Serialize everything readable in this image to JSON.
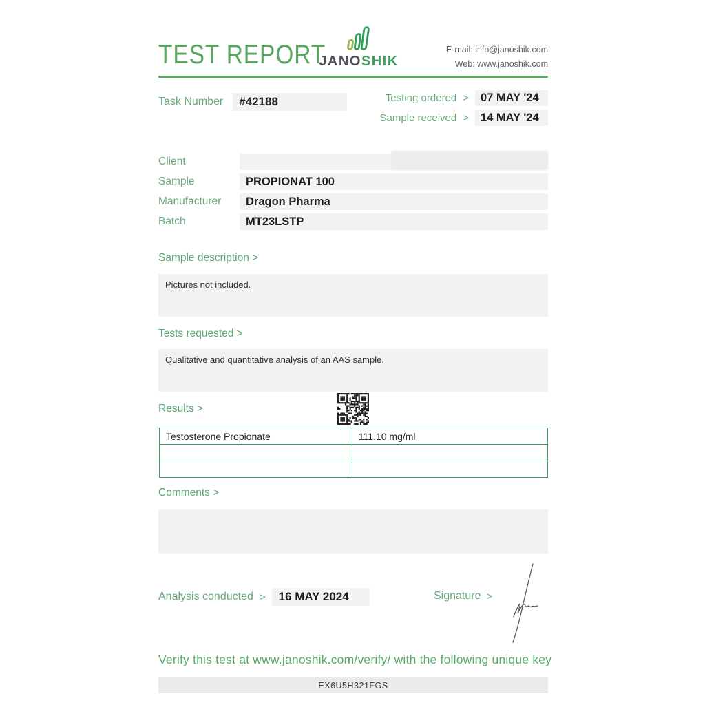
{
  "colors": {
    "accent_green": "#58a75f",
    "label_green": "#6aa87c",
    "table_border": "#3d9c60",
    "dark_text": "#2d2d2d",
    "box_gray": "#f2f2f1"
  },
  "header": {
    "title": "TEST REPORT",
    "logo_jano": "JANO",
    "logo_shik": "SHIK",
    "email_line": "E-mail: info@janoshik.com",
    "web_line": "Web: www.janoshik.com"
  },
  "task": {
    "label": "Task Number",
    "value": "#42188",
    "dates": [
      {
        "label": "Testing ordered",
        "arrow": ">",
        "value": "07 MAY '24"
      },
      {
        "label": "Sample received",
        "arrow": ">",
        "value": "14 MAY '24"
      }
    ]
  },
  "info_rows": [
    {
      "label": "Client",
      "value": ""
    },
    {
      "label": "Sample",
      "value": "PROPIONAT 100"
    },
    {
      "label": "Manufacturer",
      "value": "Dragon Pharma"
    },
    {
      "label": "Batch",
      "value": "MT23LSTP"
    }
  ],
  "sample_description": {
    "heading": "Sample description >",
    "body": "Pictures not included."
  },
  "tests_requested": {
    "heading": "Tests requested >",
    "body": "Qualitative and quantitative analysis of an AAS sample."
  },
  "results": {
    "heading": "Results >",
    "qr_icon": "qr-code",
    "rows": [
      {
        "name": "Testosterone Propionate",
        "value": "111.10 mg/ml"
      },
      {
        "name": "",
        "value": ""
      },
      {
        "name": "",
        "value": ""
      }
    ]
  },
  "comments": {
    "heading": "Comments >",
    "body": ""
  },
  "analysis": {
    "label": "Analysis conducted",
    "arrow": ">",
    "date": "16 MAY 2024"
  },
  "signature": {
    "label": "Signature",
    "arrow": ">"
  },
  "verify": {
    "text": "Verify this test at www.janoshik.com/verify/ with the following unique key",
    "key": "EX6U5H321FGS"
  }
}
